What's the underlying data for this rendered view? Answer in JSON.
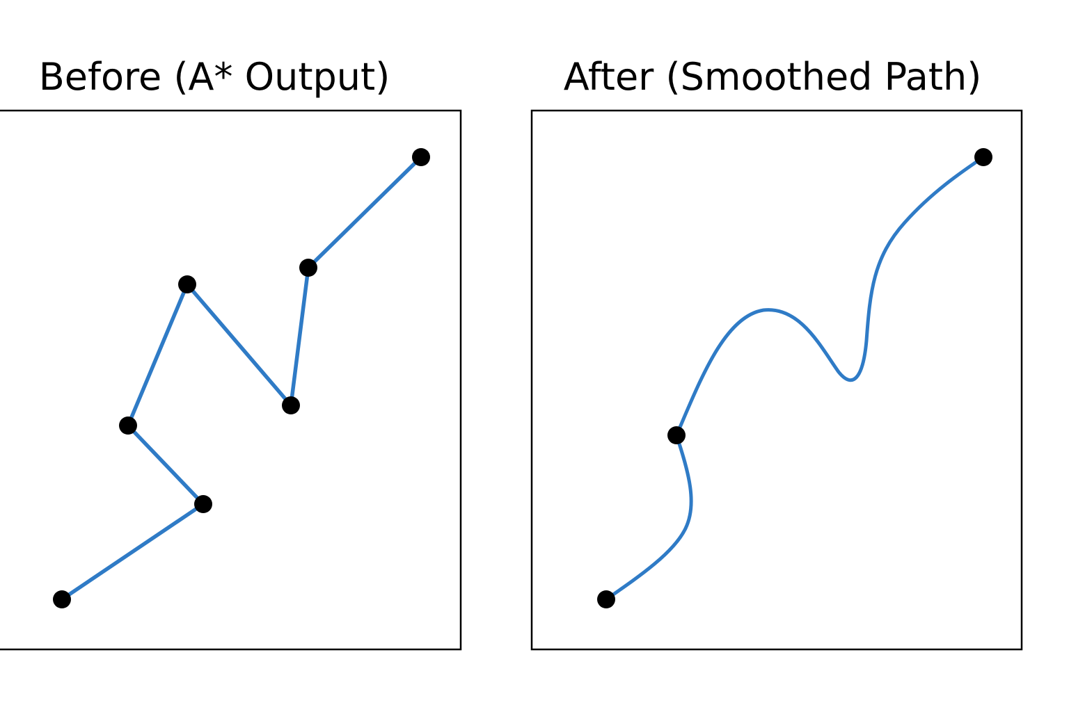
{
  "panels": [
    {
      "title": "Before (A* Output)",
      "path_kind": "polyline",
      "waypoints_shown": 7
    },
    {
      "title": "After (Smoothed Path)",
      "path_kind": "smooth-curve",
      "waypoints_shown": 3
    }
  ],
  "colors": {
    "path": "#2f7bc6",
    "waypoint": "#000000",
    "frame": "#000000",
    "background": "#ffffff"
  }
}
